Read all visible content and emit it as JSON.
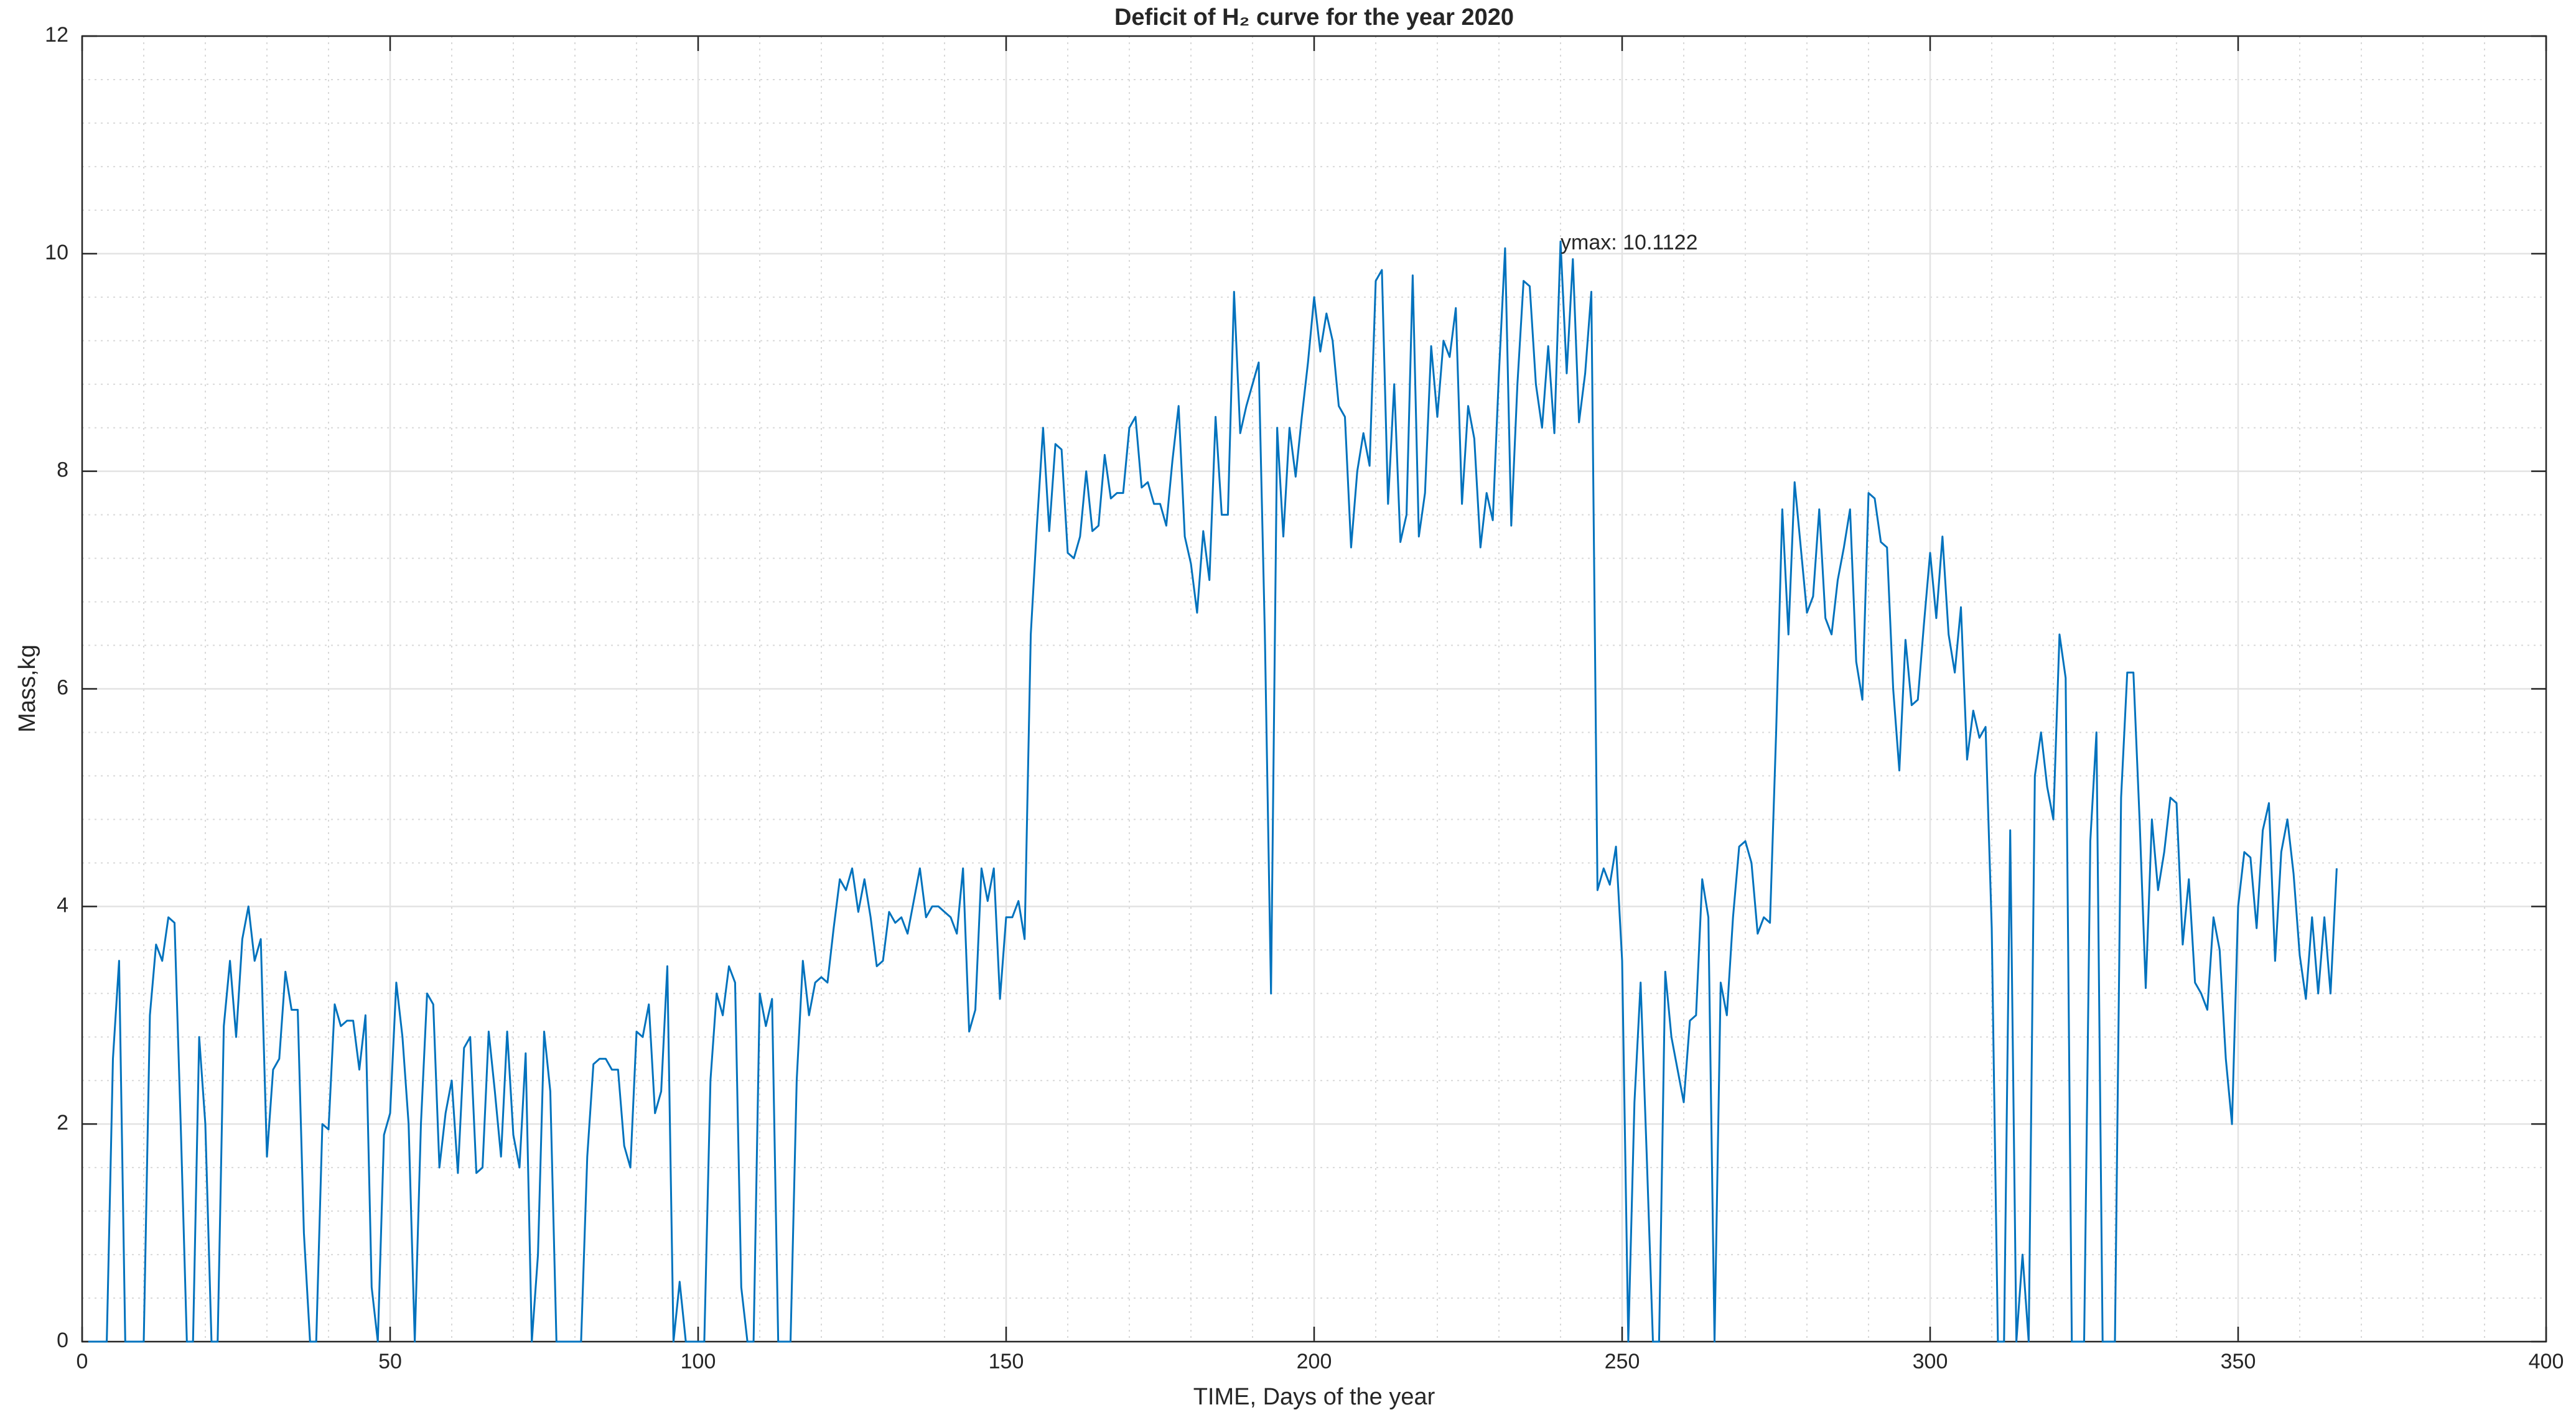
{
  "chart_data": {
    "type": "line",
    "title": "Deficit of H₂ curve for the year 2020",
    "xlabel": "TIME, Days of the year",
    "ylabel": "Mass,kg",
    "xlim": [
      0,
      400
    ],
    "ylim": [
      0,
      12
    ],
    "xticks": [
      0,
      50,
      100,
      150,
      200,
      250,
      300,
      350,
      400
    ],
    "yticks": [
      0,
      2,
      4,
      6,
      8,
      10,
      12
    ],
    "grid": true,
    "minor_grid": true,
    "annotations": [
      {
        "label": "ymax: 10.1122",
        "x": 240,
        "y": 10.1122
      }
    ],
    "x": [
      1,
      2,
      3,
      4,
      5,
      6,
      7,
      8,
      9,
      10,
      11,
      12,
      13,
      14,
      15,
      16,
      17,
      18,
      19,
      20,
      21,
      22,
      23,
      24,
      25,
      26,
      27,
      28,
      29,
      30,
      31,
      32,
      33,
      34,
      35,
      36,
      37,
      38,
      39,
      40,
      41,
      42,
      43,
      44,
      45,
      46,
      47,
      48,
      49,
      50,
      51,
      52,
      53,
      54,
      55,
      56,
      57,
      58,
      59,
      60,
      61,
      62,
      63,
      64,
      65,
      66,
      67,
      68,
      69,
      70,
      71,
      72,
      73,
      74,
      75,
      76,
      77,
      78,
      79,
      80,
      81,
      82,
      83,
      84,
      85,
      86,
      87,
      88,
      89,
      90,
      91,
      92,
      93,
      94,
      95,
      96,
      97,
      98,
      99,
      100,
      101,
      102,
      103,
      104,
      105,
      106,
      107,
      108,
      109,
      110,
      111,
      112,
      113,
      114,
      115,
      116,
      117,
      118,
      119,
      120,
      121,
      122,
      123,
      124,
      125,
      126,
      127,
      128,
      129,
      130,
      131,
      132,
      133,
      134,
      135,
      136,
      137,
      138,
      139,
      140,
      141,
      142,
      143,
      144,
      145,
      146,
      147,
      148,
      149,
      150,
      151,
      152,
      153,
      154,
      155,
      156,
      157,
      158,
      159,
      160,
      161,
      162,
      163,
      164,
      165,
      166,
      167,
      168,
      169,
      170,
      171,
      172,
      173,
      174,
      175,
      176,
      177,
      178,
      179,
      180,
      181,
      182,
      183,
      184,
      185,
      186,
      187,
      188,
      189,
      190,
      191,
      192,
      193,
      194,
      195,
      196,
      197,
      198,
      199,
      200,
      201,
      202,
      203,
      204,
      205,
      206,
      207,
      208,
      209,
      210,
      211,
      212,
      213,
      214,
      215,
      216,
      217,
      218,
      219,
      220,
      221,
      222,
      223,
      224,
      225,
      226,
      227,
      228,
      229,
      230,
      231,
      232,
      233,
      234,
      235,
      236,
      237,
      238,
      239,
      240,
      241,
      242,
      243,
      244,
      245,
      246,
      247,
      248,
      249,
      250,
      251,
      252,
      253,
      254,
      255,
      256,
      257,
      258,
      259,
      260,
      261,
      262,
      263,
      264,
      265,
      266,
      267,
      268,
      269,
      270,
      271,
      272,
      273,
      274,
      275,
      276,
      277,
      278,
      279,
      280,
      281,
      282,
      283,
      284,
      285,
      286,
      287,
      288,
      289,
      290,
      291,
      292,
      293,
      294,
      295,
      296,
      297,
      298,
      299,
      300,
      301,
      302,
      303,
      304,
      305,
      306,
      307,
      308,
      309,
      310,
      311,
      312,
      313,
      314,
      315,
      316,
      317,
      318,
      319,
      320,
      321,
      322,
      323,
      324,
      325,
      326,
      327,
      328,
      329,
      330,
      331,
      332,
      333,
      334,
      335,
      336,
      337,
      338,
      339,
      340,
      341,
      342,
      343,
      344,
      345,
      346,
      347,
      348,
      349,
      350,
      351,
      352,
      353,
      354,
      355,
      356,
      357,
      358,
      359,
      360,
      361,
      362,
      363,
      364,
      365,
      366
    ],
    "series": [
      {
        "name": "Deficit",
        "color": "#0072bd",
        "values": [
          0,
          0,
          0,
          0,
          2.6,
          3.5,
          0,
          0,
          0,
          0,
          3.0,
          3.65,
          3.5,
          3.9,
          3.85,
          2.0,
          0,
          0,
          2.8,
          2.0,
          0,
          0,
          2.9,
          3.5,
          2.8,
          3.7,
          4.0,
          3.5,
          3.7,
          1.7,
          2.5,
          2.6,
          3.4,
          3.05,
          3.05,
          1.0,
          0,
          0,
          2.0,
          1.95,
          3.1,
          2.9,
          2.95,
          2.95,
          2.5,
          3.0,
          0.5,
          0,
          1.9,
          2.1,
          3.3,
          2.8,
          2.0,
          0,
          2.0,
          3.2,
          3.1,
          1.6,
          2.1,
          2.4,
          1.55,
          2.7,
          2.8,
          1.55,
          1.6,
          2.85,
          2.3,
          1.7,
          2.85,
          1.9,
          1.6,
          2.65,
          0,
          0.8,
          2.85,
          2.3,
          0,
          0,
          0,
          0,
          0,
          1.7,
          2.55,
          2.6,
          2.6,
          2.5,
          2.5,
          1.8,
          1.6,
          2.85,
          2.8,
          3.1,
          2.1,
          2.3,
          3.45,
          0,
          0.55,
          0,
          0,
          0,
          0,
          2.4,
          3.2,
          3.0,
          3.45,
          3.3,
          0.5,
          0,
          0,
          3.2,
          2.9,
          3.15,
          0,
          0,
          0,
          2.4,
          3.5,
          3.0,
          3.3,
          3.35,
          3.3,
          3.8,
          4.25,
          4.15,
          4.35,
          3.95,
          4.25,
          3.9,
          3.45,
          3.5,
          3.95,
          3.85,
          3.9,
          3.75,
          4.05,
          4.35,
          3.9,
          4.0,
          4.0,
          3.95,
          3.9,
          3.75,
          4.35,
          2.85,
          3.05,
          4.35,
          4.05,
          4.35,
          3.15,
          3.9,
          3.9,
          4.05,
          3.7,
          6.5,
          7.5,
          8.4,
          7.45,
          8.25,
          8.2,
          7.25,
          7.2,
          7.4,
          8.0,
          7.45,
          7.5,
          8.15,
          7.75,
          7.8,
          7.8,
          8.4,
          8.5,
          7.85,
          7.9,
          7.7,
          7.7,
          7.5,
          8.1,
          8.6,
          7.4,
          7.15,
          6.7,
          7.45,
          7.0,
          8.5,
          7.6,
          7.6,
          9.65,
          8.35,
          8.6,
          8.8,
          9.0,
          6.5,
          3.2,
          8.4,
          7.4,
          8.4,
          7.95,
          8.5,
          9.0,
          9.6,
          9.1,
          9.45,
          9.2,
          8.6,
          8.5,
          7.3,
          8.0,
          8.35,
          8.05,
          9.75,
          9.85,
          7.7,
          8.8,
          7.35,
          7.6,
          9.8,
          7.4,
          7.8,
          9.15,
          8.5,
          9.2,
          9.05,
          9.5,
          7.7,
          8.6,
          8.3,
          7.3,
          7.8,
          7.55,
          8.9,
          10.05,
          7.5,
          8.8,
          9.75,
          9.7,
          8.8,
          8.4,
          9.15,
          8.35,
          10.1122,
          8.9,
          9.95,
          8.45,
          8.9,
          9.65,
          4.15,
          4.35,
          4.2,
          4.55,
          3.5,
          0,
          2.2,
          3.3,
          1.7,
          0,
          0,
          3.4,
          2.8,
          2.5,
          2.2,
          2.95,
          3.0,
          4.25,
          3.9,
          0,
          3.3,
          3.0,
          3.9,
          4.55,
          4.6,
          4.4,
          3.75,
          3.9,
          3.85,
          5.6,
          7.65,
          6.5,
          7.9,
          7.3,
          6.7,
          6.85,
          7.65,
          6.65,
          6.5,
          7.0,
          7.3,
          7.65,
          6.25,
          5.9,
          7.8,
          7.75,
          7.35,
          7.3,
          6.0,
          5.25,
          6.45,
          5.85,
          5.9,
          6.6,
          7.25,
          6.65,
          7.4,
          6.5,
          6.15,
          6.75,
          5.35,
          5.8,
          5.55,
          5.65,
          3.8,
          0,
          0,
          4.7,
          0,
          0.8,
          0,
          5.2,
          5.6,
          5.1,
          4.8,
          6.5,
          6.1,
          0,
          0,
          0,
          4.6,
          5.6,
          0,
          0,
          0,
          5.0,
          6.15,
          6.15,
          4.8,
          3.25,
          4.8,
          4.15,
          4.5,
          5.0,
          4.95,
          3.65,
          4.25,
          3.3,
          3.2,
          3.05,
          3.9,
          3.6,
          2.6,
          2.0,
          4.0,
          4.5,
          4.45,
          3.8,
          4.7,
          4.95,
          3.5,
          4.5,
          4.8,
          4.3,
          3.55,
          3.15,
          3.9,
          3.2,
          3.9,
          3.2,
          4.35
        ]
      }
    ]
  }
}
